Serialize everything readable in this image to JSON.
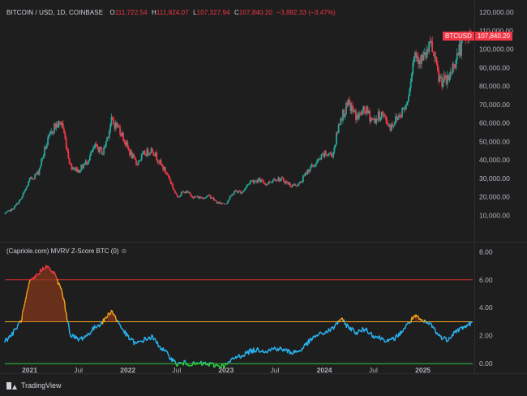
{
  "header": {
    "symbol": "BITCOIN / USD, 1D, COINBASE",
    "open_label": "O",
    "open": "111,722.54",
    "high_label": "H",
    "high": "111,824.07",
    "low_label": "L",
    "low": "107,327.94",
    "close_label": "C",
    "close": "107,840.20",
    "change": "−3,882.33 (−3.47%)"
  },
  "price_badge": {
    "ticker": "BTCUSD",
    "price": "107,840.20"
  },
  "indicator": {
    "label": "(Capriole.com) MVRV Z-Score BTC (0)",
    "eye_icon": "eye-icon"
  },
  "footer": {
    "brand": "TradingView",
    "logo_icon": "tradingview-logo-icon"
  },
  "colors": {
    "background": "#1e1e1e",
    "up": "#26a69a",
    "down": "#f23645",
    "z_blue": "#29b6f6",
    "z_orange": "#f7a21b",
    "z_red": "#f23645",
    "z_green": "#2ecc40",
    "line_red": "#d32f2f",
    "line_orange": "#f5a623",
    "line_green": "#2ecc40"
  },
  "chart_data": [
    {
      "type": "line",
      "chart_style": "candlestick",
      "series": [
        {
          "x": [
            "2020-10-01",
            "2020-11-01",
            "2020-12-01",
            "2021-01-01",
            "2021-02-01",
            "2021-03-01",
            "2021-04-01",
            "2021-05-01",
            "2021-06-01",
            "2021-07-01",
            "2021-08-01",
            "2021-09-01",
            "2021-10-01",
            "2021-11-01",
            "2021-12-01",
            "2022-01-01",
            "2022-02-01",
            "2022-03-01",
            "2022-04-01",
            "2022-05-01",
            "2022-06-01",
            "2022-07-01",
            "2022-08-01",
            "2022-09-01",
            "2022-10-01",
            "2022-11-01",
            "2022-12-01",
            "2023-01-01",
            "2023-02-01",
            "2023-03-01",
            "2023-04-01",
            "2023-05-01",
            "2023-06-01",
            "2023-07-01",
            "2023-08-01",
            "2023-09-01",
            "2023-10-01",
            "2023-11-01",
            "2023-12-01",
            "2024-01-01",
            "2024-02-01",
            "2024-03-01",
            "2024-04-01",
            "2024-05-01",
            "2024-06-01",
            "2024-07-01",
            "2024-08-01",
            "2024-09-01",
            "2024-10-01",
            "2024-11-01",
            "2024-12-01",
            "2025-01-01",
            "2025-02-01",
            "2025-03-01",
            "2025-04-01",
            "2025-05-01",
            "2025-06-01",
            "2025-07-01"
          ],
          "values": [
            10800,
            13700,
            19000,
            29000,
            33000,
            47000,
            58000,
            60000,
            37000,
            34000,
            39000,
            47000,
            44000,
            61000,
            57000,
            46000,
            38000,
            43000,
            46000,
            38000,
            31000,
            20000,
            23000,
            20000,
            19500,
            20500,
            16500,
            16600,
            23000,
            22500,
            28500,
            29000,
            27000,
            30000,
            29000,
            26000,
            27000,
            34500,
            38000,
            43000,
            43000,
            63000,
            70000,
            63000,
            67000,
            61000,
            65000,
            58000,
            63500,
            70000,
            98000,
            94000,
            102000,
            84000,
            82000,
            94000,
            105000,
            108000
          ]
        }
      ],
      "y_ticks": [
        "120,000.00",
        "110,000.00",
        "100,000.00",
        "90,000.00",
        "80,000.00",
        "70,000.00",
        "60,000.00",
        "50,000.00",
        "40,000.00",
        "30,000.00",
        "20,000.00",
        "10,000.00"
      ],
      "ylim": [
        0,
        120000
      ]
    },
    {
      "type": "area",
      "title": "(Capriole.com) MVRV Z-Score BTC (0)",
      "series": [
        {
          "x": [
            "2020-10-01",
            "2020-11-01",
            "2020-12-01",
            "2021-01-01",
            "2021-02-01",
            "2021-03-01",
            "2021-04-01",
            "2021-05-01",
            "2021-06-01",
            "2021-07-01",
            "2021-08-01",
            "2021-09-01",
            "2021-10-01",
            "2021-11-01",
            "2021-12-01",
            "2022-01-01",
            "2022-02-01",
            "2022-03-01",
            "2022-04-01",
            "2022-05-01",
            "2022-06-01",
            "2022-07-01",
            "2022-08-01",
            "2022-09-01",
            "2022-10-01",
            "2022-11-01",
            "2022-12-01",
            "2023-01-01",
            "2023-02-01",
            "2023-03-01",
            "2023-04-01",
            "2023-05-01",
            "2023-06-01",
            "2023-07-01",
            "2023-08-01",
            "2023-09-01",
            "2023-10-01",
            "2023-11-01",
            "2023-12-01",
            "2024-01-01",
            "2024-02-01",
            "2024-03-01",
            "2024-04-01",
            "2024-05-01",
            "2024-06-01",
            "2024-07-01",
            "2024-08-01",
            "2024-09-01",
            "2024-10-01",
            "2024-11-01",
            "2024-12-01",
            "2025-01-01",
            "2025-02-01",
            "2025-03-01",
            "2025-04-01",
            "2025-05-01",
            "2025-06-01",
            "2025-07-01"
          ],
          "values": [
            1.6,
            2.2,
            3.1,
            5.8,
            6.4,
            7.0,
            6.5,
            5.2,
            2.1,
            1.7,
            2.0,
            2.6,
            3.0,
            3.8,
            2.8,
            1.9,
            1.4,
            1.7,
            1.9,
            1.2,
            0.6,
            -0.05,
            0.05,
            -0.05,
            0.0,
            -0.05,
            -0.15,
            -0.1,
            0.4,
            0.6,
            0.9,
            1.0,
            0.9,
            1.1,
            1.0,
            0.8,
            0.9,
            1.5,
            2.0,
            2.2,
            2.5,
            3.2,
            2.6,
            2.2,
            2.5,
            2.0,
            1.8,
            1.6,
            2.0,
            2.7,
            3.4,
            3.0,
            2.8,
            2.0,
            1.7,
            2.3,
            2.6,
            2.9
          ]
        }
      ],
      "thresholds": [
        6.0,
        3.0,
        0.0
      ],
      "y_ticks": [
        "8.00",
        "6.00",
        "4.00",
        "2.00",
        "0.00"
      ],
      "ylim": [
        -0.4,
        8.6
      ]
    }
  ],
  "x_axis_labels": [
    "2021",
    "Jul",
    "2022",
    "Jul",
    "2023",
    "Jul",
    "2024",
    "Jul",
    "2025"
  ],
  "x_axis_label_dates": [
    "2021-01-01",
    "2021-07-01",
    "2022-01-01",
    "2022-07-01",
    "2023-01-01",
    "2023-07-01",
    "2024-01-01",
    "2024-07-01",
    "2025-01-01"
  ],
  "x_range": [
    "2020-10-01",
    "2025-07-05"
  ]
}
